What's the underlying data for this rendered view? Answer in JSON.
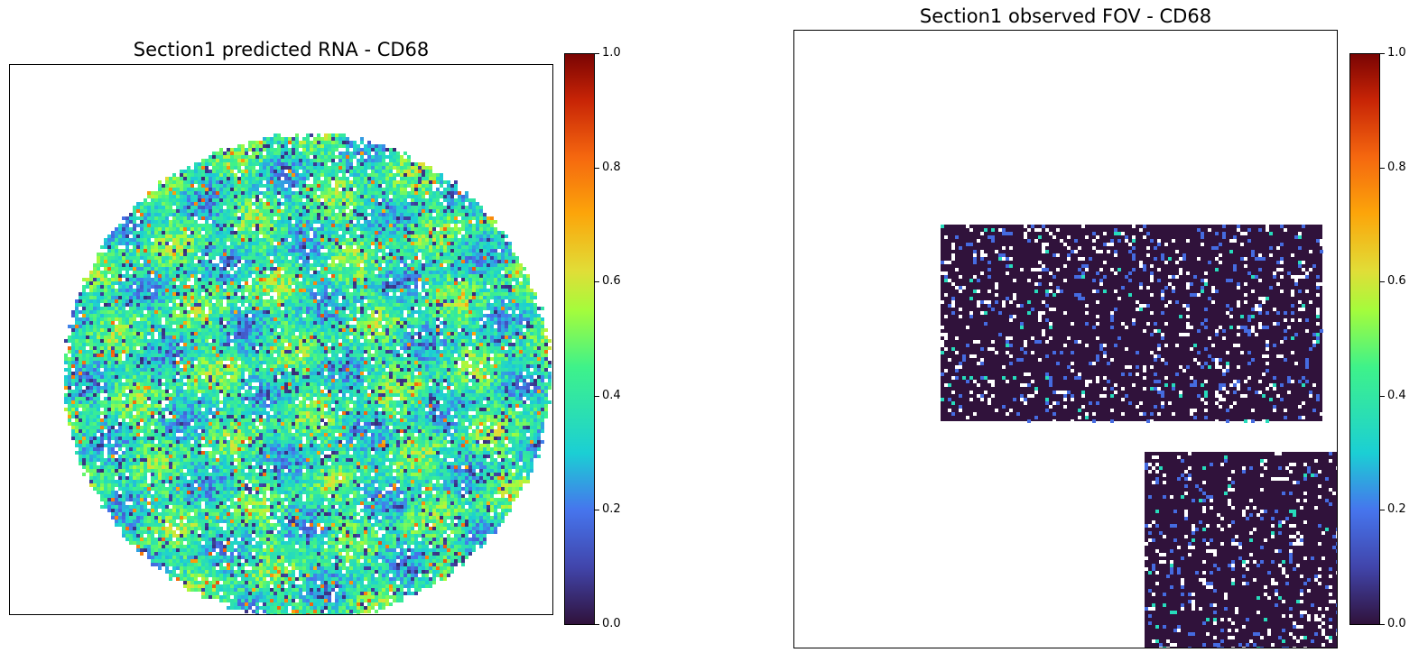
{
  "chart_data": [
    {
      "type": "heatmap",
      "title": "Section1 predicted RNA - CD68",
      "xlabel": "",
      "ylabel": "",
      "colormap": "turbo",
      "colorbar": {
        "range": [
          0.0,
          1.0
        ],
        "ticks": [
          "0.0",
          "0.2",
          "0.4",
          "0.6",
          "0.8",
          "1.0"
        ]
      },
      "region_shape": "circle",
      "typical_value_range": [
        0.1,
        0.6
      ],
      "grid": false
    },
    {
      "type": "heatmap",
      "title": "Section1 observed FOV - CD68",
      "xlabel": "",
      "ylabel": "",
      "colormap": "turbo",
      "colorbar": {
        "range": [
          0.0,
          1.0
        ],
        "ticks": [
          "0.0",
          "0.2",
          "0.4",
          "0.6",
          "0.8",
          "1.0"
        ]
      },
      "region_shape": "two rectangular FOVs",
      "typical_value_range": [
        0.0,
        0.3
      ],
      "grid": false
    }
  ]
}
